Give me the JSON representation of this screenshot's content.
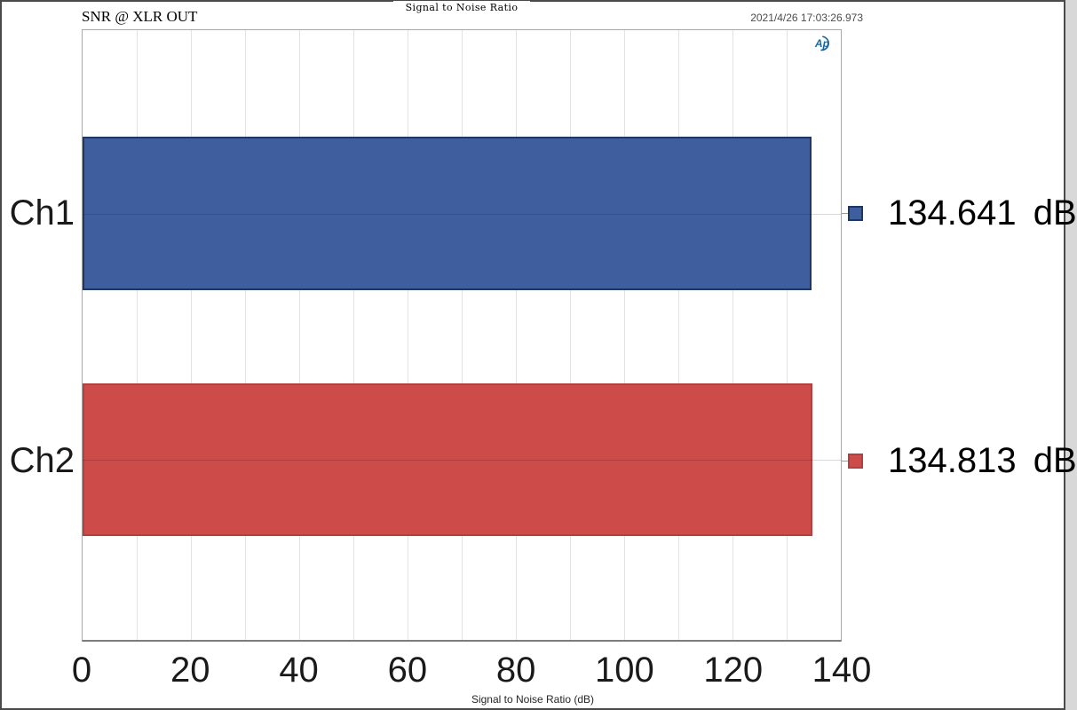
{
  "header": {
    "left_label": "SNR @ XLR OUT",
    "timestamp": "2021/4/26 17:03:26.973"
  },
  "logo": {
    "name": "audio-precision-logo",
    "text": "Ap",
    "color": "#16679f"
  },
  "chart_data": {
    "type": "bar",
    "orientation": "horizontal",
    "title": "Signal to Noise Ratio",
    "xlabel": "Signal to Noise Ratio (dB)",
    "categories": [
      "Ch1",
      "Ch2"
    ],
    "values": [
      134.641,
      134.813
    ],
    "value_labels": [
      "134.641 dB",
      "134.813 dB"
    ],
    "unit": "dB",
    "xlim": [
      0,
      140
    ],
    "xticks": [
      0,
      20,
      40,
      60,
      80,
      100,
      120,
      140
    ],
    "minor_grid_step": 10,
    "grid": true,
    "legend_position": "right-of-bars",
    "bar_colors": [
      "#3e5e9d",
      "#cd4b49"
    ],
    "bar_border_colors": [
      "#1e3864",
      "#b1403e"
    ],
    "plot_border_color": "#a8a8a8",
    "gridline_color": "#e3e3e3"
  }
}
